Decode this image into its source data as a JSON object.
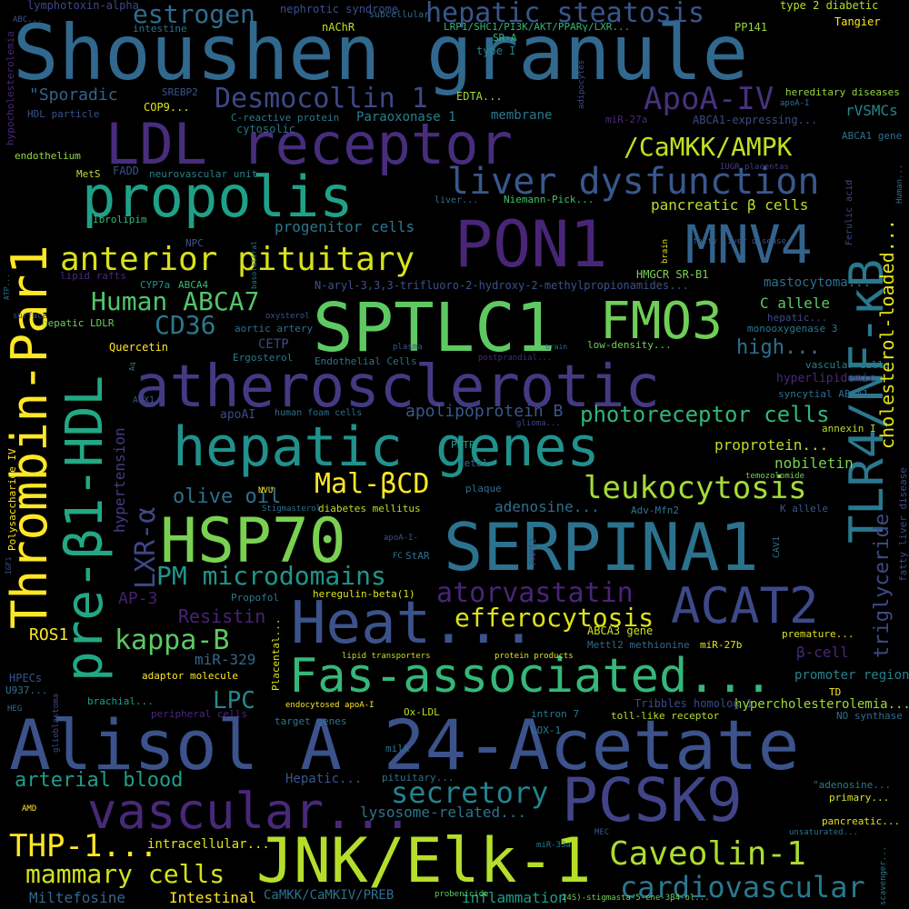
{
  "words": [
    {
      "text": "Shoushen granule",
      "color": "#31688e"
    },
    {
      "text": "Alisol A 24-Acetate",
      "color": "#3b528b"
    },
    {
      "text": "SERPINA1",
      "color": "#2c728e"
    },
    {
      "text": "Thrombin-Par1",
      "color": "#fde725"
    },
    {
      "text": "PON1",
      "color": "#482576"
    },
    {
      "text": "SPTLC1",
      "color": "#5ec962"
    },
    {
      "text": "LDL receptor",
      "color": "#472d7b"
    },
    {
      "text": "atherosclerotic",
      "color": "#443a83"
    },
    {
      "text": "hepatic genes",
      "color": "#21918c"
    },
    {
      "text": "HSP70",
      "color": "#7ad151"
    },
    {
      "text": "Heat...",
      "color": "#3b528b"
    },
    {
      "text": "Fas-associated...",
      "color": "#35b779"
    },
    {
      "text": "JNK/Elk-1",
      "color": "#b5de2b"
    },
    {
      "text": "PCSK9",
      "color": "#414487"
    },
    {
      "text": "vascular...",
      "color": "#482878"
    },
    {
      "text": "propolis",
      "color": "#1fa187"
    },
    {
      "text": "MNV4",
      "color": "#33638d"
    },
    {
      "text": "FMO3",
      "color": "#6ece58"
    },
    {
      "text": "ACAT2",
      "color": "#3e4989"
    },
    {
      "text": "TLR4/NF-κB",
      "color": "#2a788e"
    },
    {
      "text": "pre-β1-HDL",
      "color": "#22a884"
    },
    {
      "text": "anterior pituitary",
      "color": "#d8e219"
    },
    {
      "text": "liver dysfunction",
      "color": "#38588c"
    },
    {
      "text": "hepatic steatosis",
      "color": "#39568c"
    },
    {
      "text": "estrogen",
      "color": "#2e6e8e"
    },
    {
      "text": "Desmocollin 1",
      "color": "#3e4989"
    },
    {
      "text": "ApoA-IV",
      "color": "#46327e"
    },
    {
      "text": "/CaMKK/AMPK",
      "color": "#c2df23"
    },
    {
      "text": "Human ABCA7",
      "color": "#52c569"
    },
    {
      "text": "CD36",
      "color": "#2a788e"
    },
    {
      "text": "Caveolin-1",
      "color": "#addc30"
    },
    {
      "text": "cardiovascular",
      "color": "#2a788e"
    },
    {
      "text": "secretory",
      "color": "#26828e"
    },
    {
      "text": "arterial blood",
      "color": "#1f9e89"
    },
    {
      "text": "mammary cells",
      "color": "#d2e21b"
    },
    {
      "text": "THP-1...",
      "color": "#fde725"
    },
    {
      "text": "kappa-B",
      "color": "#5ec962"
    },
    {
      "text": "PM microdomains",
      "color": "#1f968b"
    },
    {
      "text": "leukocytosis",
      "color": "#a5db36"
    },
    {
      "text": "efferocytosis",
      "color": "#dde318"
    },
    {
      "text": "atorvastatin",
      "color": "#482576"
    },
    {
      "text": "Mal-βCD",
      "color": "#fde725"
    },
    {
      "text": "olive oil",
      "color": "#2d708e"
    },
    {
      "text": "LXR-α",
      "color": "#3f4788"
    },
    {
      "text": "photoreceptor cells",
      "color": "#31b57b"
    },
    {
      "text": "cholesterol-loaded...",
      "color": "#e5e419"
    },
    {
      "text": "triglyceride",
      "color": "#3e4a89"
    },
    {
      "text": "high...",
      "color": "#2d708e"
    },
    {
      "text": "apolipoprotein B",
      "color": "#38588c"
    },
    {
      "text": "pancreatic β cells",
      "color": "#bade28"
    },
    {
      "text": "Resistin",
      "color": "#482475"
    },
    {
      "text": "LPC",
      "color": "#23898e"
    },
    {
      "text": "AP-3",
      "color": "#481d6f"
    },
    {
      "text": "ROS1",
      "color": "#fde725"
    },
    {
      "text": "Intestinal",
      "color": "#fde725"
    },
    {
      "text": "inflammation",
      "color": "#1e9b8a"
    },
    {
      "text": "Miltefosine",
      "color": "#31688e"
    },
    {
      "text": "lysosome-related...",
      "color": "#2b758e"
    },
    {
      "text": "progenitor cells",
      "color": "#2a788e"
    },
    {
      "text": "Paraoxonase 1",
      "color": "#27808e"
    },
    {
      "text": "membrane",
      "color": "#29798e"
    },
    {
      "text": "\"Sporadic",
      "color": "#32648e"
    },
    {
      "text": "proprotein...",
      "color": "#b8de29"
    },
    {
      "text": "nobiletin",
      "color": "#77d153"
    },
    {
      "text": "hypertension",
      "color": "#433e85"
    },
    {
      "text": "rVSMCs",
      "color": "#24868e"
    },
    {
      "text": "promoter region",
      "color": "#26828e"
    },
    {
      "text": "β-cell",
      "color": "#482878"
    },
    {
      "text": "adenosine...",
      "color": "#2e6e8e"
    },
    {
      "text": "CETP",
      "color": "#3e4a89"
    },
    {
      "text": "Quercetin",
      "color": "#fde725"
    },
    {
      "text": "mastocytoma...",
      "color": "#2d708e"
    },
    {
      "text": "C allele",
      "color": "#5ec962"
    },
    {
      "text": "miR-329",
      "color": "#31688e"
    },
    {
      "text": "ABCA3 gene",
      "color": "#d0e11c"
    },
    {
      "text": "hypercholesterolemia...",
      "color": "#9fda3a"
    },
    {
      "text": "Tribbles homolog 1",
      "color": "#3e4989"
    },
    {
      "text": "nephrotic syndrome",
      "color": "#3d4d8a"
    },
    {
      "text": "lymphotoxin-alpha",
      "color": "#404688"
    },
    {
      "text": "type 2 diabetic",
      "color": "#b5de2b"
    },
    {
      "text": "Tangier",
      "color": "#fde725"
    },
    {
      "text": "intestine",
      "color": "#2d708e"
    },
    {
      "text": "nAChR",
      "color": "#bddf26"
    },
    {
      "text": "subcellular",
      "color": "#2e6d8e"
    },
    {
      "text": "LRP1/SHC1/PI3K/AKT/PPARγ/LXR...",
      "color": "#31b57b"
    },
    {
      "text": "SR-A",
      "color": "#31b57b"
    },
    {
      "text": "type I",
      "color": "#24868e"
    },
    {
      "text": "PP141",
      "color": "#95d840"
    },
    {
      "text": "SREBP2",
      "color": "#3b528b"
    },
    {
      "text": "COP9...",
      "color": "#e2e418"
    },
    {
      "text": "EDTA...",
      "color": "#9bd93c"
    },
    {
      "text": "HDL particle",
      "color": "#3b528b"
    },
    {
      "text": "C-reactive protein",
      "color": "#2a788e"
    },
    {
      "text": "cytosolic",
      "color": "#2c728e"
    },
    {
      "text": "miR-27a",
      "color": "#482878"
    },
    {
      "text": "ABCA1-expressing...",
      "color": "#3e4989"
    },
    {
      "text": "hereditary diseases",
      "color": "#95d840"
    },
    {
      "text": "apoA-I",
      "color": "#2e6e8e"
    },
    {
      "text": "endothelium",
      "color": "#93d741"
    },
    {
      "text": "MetS",
      "color": "#c2df23"
    },
    {
      "text": "FADD",
      "color": "#3b528b"
    },
    {
      "text": "neurovascular unit",
      "color": "#26828e"
    },
    {
      "text": "Niemann-Pick...",
      "color": "#46c06f"
    },
    {
      "text": "liver...",
      "color": "#2c718e"
    },
    {
      "text": "ABCA1 gene",
      "color": "#2d708e"
    },
    {
      "text": "IUGR placentas",
      "color": "#433e85"
    },
    {
      "text": "Ibrolipim",
      "color": "#35b779"
    },
    {
      "text": "NPC",
      "color": "#3b528b"
    },
    {
      "text": "HMGCR SR-B1",
      "color": "#7ad151"
    },
    {
      "text": "N-aryl-3,3,3-trifluoro-2-hydroxy-2-methylpropionamides...",
      "color": "#3b528b"
    },
    {
      "text": "CYP7a",
      "color": "#21918c"
    },
    {
      "text": "ABCA4",
      "color": "#35b779"
    },
    {
      "text": "hepatic...",
      "color": "#3f4889"
    },
    {
      "text": "monooxygenase 3",
      "color": "#2a788e"
    },
    {
      "text": "lipid rafts",
      "color": "#472c7a"
    },
    {
      "text": "hepatic LDLR",
      "color": "#6ece58"
    },
    {
      "text": "aortic artery",
      "color": "#2e6e8e"
    },
    {
      "text": "plasma",
      "color": "#39568c"
    },
    {
      "text": "low-density...",
      "color": "#73d056"
    },
    {
      "text": "postprandial...",
      "color": "#482878"
    },
    {
      "text": "Ergosterol",
      "color": "#2a788e"
    },
    {
      "text": "Endothelial Cells",
      "color": "#2d708e"
    },
    {
      "text": "vascular cells",
      "color": "#26828e"
    },
    {
      "text": "hyperlipidemic",
      "color": "#482878"
    },
    {
      "text": "syncytial ABCA1",
      "color": "#2d708e"
    },
    {
      "text": "human foam cells",
      "color": "#2e6e8e"
    },
    {
      "text": "apoAI",
      "color": "#3e4989"
    },
    {
      "text": "AOX1",
      "color": "#3b528b"
    },
    {
      "text": "annexin I",
      "color": "#b8de29"
    },
    {
      "text": "glioma...",
      "color": "#414487"
    },
    {
      "text": "PLTP",
      "color": "#1f9e89"
    },
    {
      "text": "fetal",
      "color": "#2e6e8e"
    },
    {
      "text": "plaque",
      "color": "#2e6e8e"
    },
    {
      "text": "temozolomide",
      "color": "#73d056"
    },
    {
      "text": "diabetes mellitus",
      "color": "#b8de29"
    },
    {
      "text": "Stigmasterol",
      "color": "#2c718e"
    },
    {
      "text": "NVU",
      "color": "#fde725"
    },
    {
      "text": "Adv-Mfn2",
      "color": "#2a788e"
    },
    {
      "text": "K allele",
      "color": "#38588c"
    },
    {
      "text": "Polysaccharide IV",
      "color": "#fde725"
    },
    {
      "text": "apoA-I-",
      "color": "#3b528b"
    },
    {
      "text": "FC",
      "color": "#2c728e"
    },
    {
      "text": "StAR",
      "color": "#2d708e"
    },
    {
      "text": "PRMT2",
      "color": "#3e4989"
    },
    {
      "text": "CAV1",
      "color": "#2e6e8e"
    },
    {
      "text": "IGF1",
      "color": "#3b528b"
    },
    {
      "text": "Propofol",
      "color": "#2a788e"
    },
    {
      "text": "heregulin-beta(1)",
      "color": "#dde318"
    },
    {
      "text": "Placental...",
      "color": "#dde318"
    },
    {
      "text": "premature...",
      "color": "#dde318"
    },
    {
      "text": "Mettl2 methionine",
      "color": "#31688e"
    },
    {
      "text": "miR-27b",
      "color": "#e5e419"
    },
    {
      "text": "adaptor molecule",
      "color": "#fde725"
    },
    {
      "text": "lipid transporters",
      "color": "#c2df23"
    },
    {
      "text": "protein products",
      "color": "#dde318"
    },
    {
      "text": "HPECs",
      "color": "#3b528b"
    },
    {
      "text": "U937...",
      "color": "#2d708e"
    },
    {
      "text": "brachial...",
      "color": "#1f9e89"
    },
    {
      "text": "HEG",
      "color": "#2d708e"
    },
    {
      "text": "glioblastoma",
      "color": "#3e4989"
    },
    {
      "text": "peripheral cells",
      "color": "#482878"
    },
    {
      "text": "target genes",
      "color": "#2a788e"
    },
    {
      "text": "endocytosed apoA-I",
      "color": "#fde725"
    },
    {
      "text": "Ox-LDL",
      "color": "#b8de29"
    },
    {
      "text": "intron 7",
      "color": "#2a788e"
    },
    {
      "text": "toll-like receptor",
      "color": "#bddf26"
    },
    {
      "text": "LOX-1",
      "color": "#2a788e"
    },
    {
      "text": "TD",
      "color": "#fde725"
    },
    {
      "text": "NO synthase",
      "color": "#2e6e8e"
    },
    {
      "text": "milk",
      "color": "#2e6e8e"
    },
    {
      "text": "Hepatic...",
      "color": "#39568c"
    },
    {
      "text": "pituitary...",
      "color": "#2c728e"
    },
    {
      "text": "\"adenosine...",
      "color": "#2a788e"
    },
    {
      "text": "primary...",
      "color": "#dde318"
    },
    {
      "text": "AMD",
      "color": "#fde725"
    },
    {
      "text": "intracellular...",
      "color": "#e2e418"
    },
    {
      "text": "pancreatic...",
      "color": "#dde318"
    },
    {
      "text": "unsaturated...",
      "color": "#2c728e"
    },
    {
      "text": "MEC",
      "color": "#3b528b"
    },
    {
      "text": "miR-33a",
      "color": "#2a788e"
    },
    {
      "text": "CaMKK/CaMKIV/PREB",
      "color": "#2d708e"
    },
    {
      "text": "probenicide",
      "color": "#5ec962"
    },
    {
      "text": "24S)-stigmasta-5-ene-3β4-ol...",
      "color": "#6ece58"
    },
    {
      "text": "scavenger...",
      "color": "#2a788e"
    },
    {
      "text": "hypocholesterolemia",
      "color": "#482878"
    },
    {
      "text": "ABC...",
      "color": "#3b528b"
    },
    {
      "text": "surface",
      "color": "#3b528b"
    },
    {
      "text": "ATP...",
      "color": "#2e6e8e"
    },
    {
      "text": "Ferulic acid",
      "color": "#3e4989"
    },
    {
      "text": "fatty liver disease",
      "color": "#3e4989"
    },
    {
      "text": "Human...",
      "color": "#2e6e8e"
    },
    {
      "text": "oxysterol",
      "color": "#3b528b"
    },
    {
      "text": "brain",
      "color": "#dde318"
    },
    {
      "text": "basolateral",
      "color": "#2a788e"
    },
    {
      "text": "adipocytes",
      "color": "#3e4989"
    },
    {
      "text": "class...",
      "color": "#3b528b"
    },
    {
      "text": "CH25H",
      "color": "#2e6e8e"
    },
    {
      "text": "Aq",
      "color": "#2a788e"
    }
  ]
}
